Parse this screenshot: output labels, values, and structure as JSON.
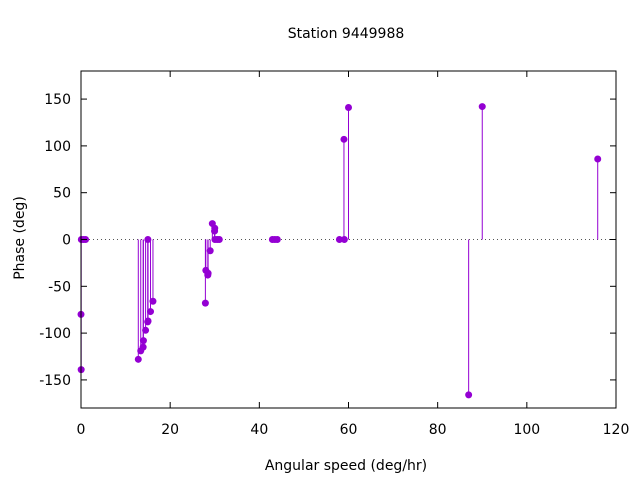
{
  "chart_data": {
    "type": "scatter",
    "style": "impulses-with-points",
    "title": "Station 9449988",
    "xlabel": "Angular speed (deg/hr)",
    "ylabel": "Phase (deg)",
    "xlim": [
      0,
      120
    ],
    "ylim": [
      -180,
      180
    ],
    "xticks": [
      0,
      20,
      40,
      60,
      80,
      100,
      120
    ],
    "yticks": [
      -150,
      -100,
      -50,
      0,
      50,
      100,
      150
    ],
    "grid": false,
    "zero_line": "dotted",
    "color": "#9400d3",
    "series": [
      {
        "x": [
          0.0,
          0.04,
          0.08,
          0.54,
          1.02,
          12.85,
          13.4,
          13.94,
          14.0,
          14.49,
          14.96,
          15.0,
          15.04,
          15.59,
          16.14,
          27.9,
          28.0,
          28.44,
          28.51,
          28.98,
          29.46,
          29.96,
          30.0,
          30.04,
          30.55,
          31.02,
          42.93,
          43.48,
          44.03,
          57.97,
          58.98,
          59.07,
          60.0,
          86.95,
          90.0,
          115.9
        ],
        "y": [
          -80,
          -139,
          0,
          0,
          0,
          -128,
          -119,
          -115,
          -108,
          -97,
          -88,
          0,
          -87,
          -77,
          -66,
          -68,
          -33,
          -38,
          -36,
          -12,
          17,
          9,
          12,
          0,
          0,
          0,
          0,
          0,
          0,
          0,
          107,
          0,
          141,
          -166,
          142,
          86
        ]
      }
    ]
  }
}
